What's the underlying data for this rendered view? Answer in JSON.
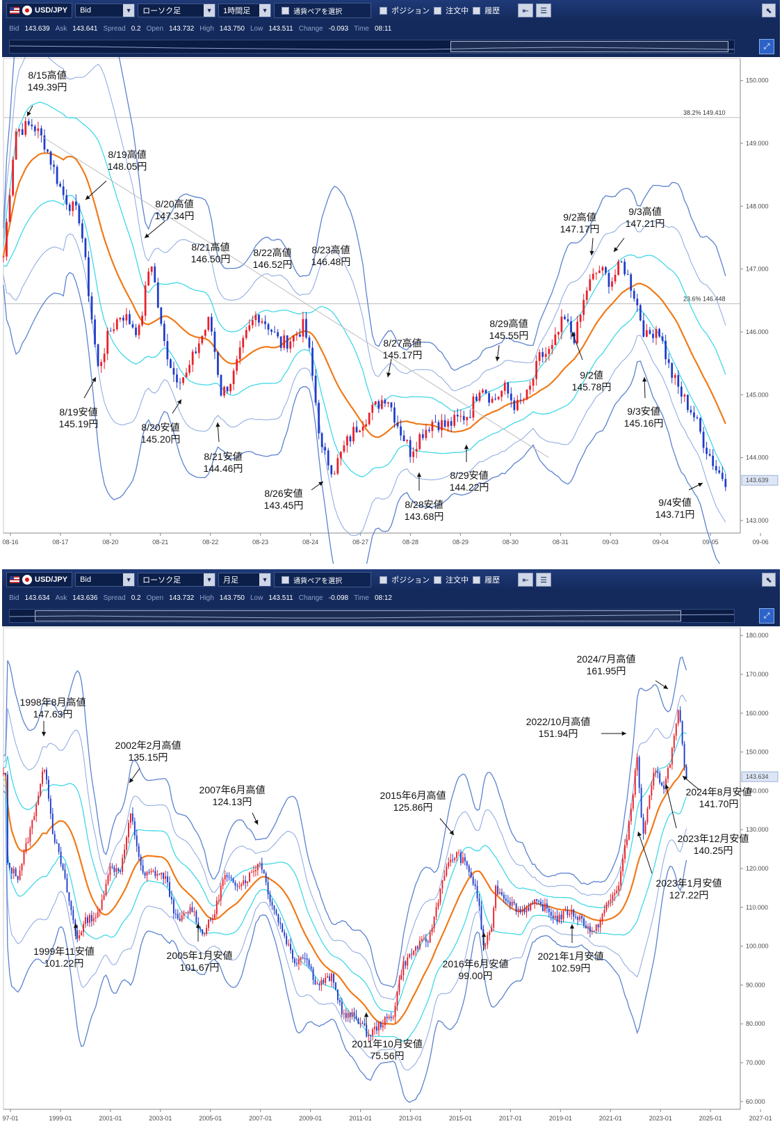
{
  "panels": [
    {
      "toolbar": {
        "pair": "USD/JPY",
        "price_type": "Bid",
        "chart_type": "ローソク足",
        "timeframe": "1時間足",
        "pair_select": "通貨ペアを選択",
        "position": "ポジション",
        "orders": "注文中",
        "history": "履歴"
      },
      "quote": {
        "bid_label": "Bid",
        "bid": "143.639",
        "ask_label": "Ask",
        "ask": "143.641",
        "spread_label": "Spread",
        "spread": "0.2",
        "open_label": "Open",
        "open": "143.732",
        "high_label": "High",
        "high": "143.750",
        "low_label": "Low",
        "low": "143.511",
        "change_label": "Change",
        "change": "-0.093",
        "time_label": "Time",
        "time": "08:11"
      },
      "chart_data": {
        "type": "candlestick",
        "indicators": [
          "SMA",
          "Bollinger Bands (±1σ, ±2σ, ±3σ)",
          "Trendline",
          "Fibonacci retracement"
        ],
        "y_ticks": [
          "150.000",
          "149.000",
          "148.000",
          "147.000",
          "146.000",
          "145.000",
          "144.000",
          "143.000"
        ],
        "x_ticks": [
          "08-16",
          "08-17",
          "08-20",
          "08-21",
          "08-22",
          "08-23",
          "08-24",
          "08-27",
          "08-28",
          "08-29",
          "08-30",
          "08-31",
          "09-03",
          "09-04",
          "09-05",
          "09-06"
        ],
        "ylim": [
          142.8,
          150.35
        ],
        "current_price": "143.639",
        "fib_levels": [
          {
            "label": "38.2%",
            "value": "149.410"
          },
          {
            "label": "23.6%",
            "value": "146.448"
          }
        ],
        "close_path": [
          [
            0,
            147.2
          ],
          [
            4,
            149.2
          ],
          [
            10,
            149.3
          ],
          [
            14,
            149.0
          ],
          [
            20,
            148.2
          ],
          [
            26,
            147.8
          ],
          [
            32,
            145.4
          ],
          [
            36,
            146.0
          ],
          [
            40,
            146.3
          ],
          [
            46,
            146.0
          ],
          [
            50,
            147.2
          ],
          [
            54,
            145.9
          ],
          [
            58,
            145.3
          ],
          [
            62,
            145.3
          ],
          [
            66,
            145.8
          ],
          [
            70,
            146.2
          ],
          [
            74,
            145.0
          ],
          [
            78,
            145.3
          ],
          [
            82,
            145.9
          ],
          [
            86,
            146.3
          ],
          [
            90,
            146.1
          ],
          [
            94,
            145.8
          ],
          [
            98,
            145.9
          ],
          [
            102,
            146.1
          ],
          [
            104,
            145.6
          ],
          [
            108,
            144.1
          ],
          [
            112,
            143.8
          ],
          [
            116,
            144.2
          ],
          [
            120,
            144.5
          ],
          [
            126,
            144.8
          ],
          [
            130,
            145.0
          ],
          [
            134,
            144.5
          ],
          [
            138,
            144.1
          ],
          [
            142,
            144.4
          ],
          [
            146,
            144.6
          ],
          [
            150,
            144.5
          ],
          [
            154,
            144.6
          ],
          [
            158,
            144.7
          ],
          [
            162,
            145.2
          ],
          [
            166,
            144.9
          ],
          [
            170,
            145.1
          ],
          [
            174,
            144.8
          ],
          [
            178,
            145.0
          ],
          [
            182,
            145.6
          ],
          [
            186,
            145.7
          ],
          [
            190,
            146.2
          ],
          [
            194,
            145.9
          ],
          [
            198,
            146.7
          ],
          [
            202,
            147.0
          ],
          [
            206,
            146.8
          ],
          [
            210,
            147.1
          ],
          [
            214,
            146.6
          ],
          [
            218,
            145.9
          ],
          [
            222,
            146.1
          ],
          [
            226,
            145.4
          ],
          [
            230,
            145.0
          ],
          [
            234,
            144.7
          ],
          [
            238,
            144.2
          ],
          [
            242,
            143.8
          ],
          [
            245,
            143.65
          ]
        ],
        "annotations": [
          {
            "label": "8/15高値",
            "value": "149.39円"
          },
          {
            "label": "8/19高値",
            "value": "148.05円"
          },
          {
            "label": "8/20高値",
            "value": "147.34円"
          },
          {
            "label": "8/21高値",
            "value": "146.50円"
          },
          {
            "label": "8/22高値",
            "value": "146.52円"
          },
          {
            "label": "8/23高値",
            "value": "146.48円"
          },
          {
            "label": "8/27高値",
            "value": "145.17円"
          },
          {
            "label": "8/29高値",
            "value": "145.55円"
          },
          {
            "label": "9/2高値",
            "value": "147.17円"
          },
          {
            "label": "9/3高値",
            "value": "147.21円"
          },
          {
            "label": "9/2値",
            "value": "145.78円"
          },
          {
            "label": "9/3安値",
            "value": "145.16円"
          },
          {
            "label": "8/19安値",
            "value": "145.19円"
          },
          {
            "label": "8/20安値",
            "value": "145.20円"
          },
          {
            "label": "8/21安値",
            "value": "144.46円"
          },
          {
            "label": "8/26安値",
            "value": "143.45円"
          },
          {
            "label": "8/28安値",
            "value": "143.68円"
          },
          {
            "label": "8/29安値",
            "value": "144.22円"
          },
          {
            "label": "9/4安値",
            "value": "143.71円"
          }
        ]
      }
    },
    {
      "toolbar": {
        "pair": "USD/JPY",
        "price_type": "Bid",
        "chart_type": "ローソク足",
        "timeframe": "月足",
        "pair_select": "通貨ペアを選択",
        "position": "ポジション",
        "orders": "注文中",
        "history": "履歴"
      },
      "quote": {
        "bid_label": "Bid",
        "bid": "143.634",
        "ask_label": "Ask",
        "ask": "143.636",
        "spread_label": "Spread",
        "spread": "0.2",
        "open_label": "Open",
        "open": "143.732",
        "high_label": "High",
        "high": "143.750",
        "low_label": "Low",
        "low": "143.511",
        "change_label": "Change",
        "change": "-0.098",
        "time_label": "Time",
        "time": "08:12"
      },
      "chart_data": {
        "type": "candlestick",
        "indicators": [
          "SMA",
          "Bollinger Bands (±1σ, ±2σ, ±3σ)"
        ],
        "y_ticks": [
          "180.000",
          "170.000",
          "160.000",
          "150.000",
          "140.000",
          "130.000",
          "120.000",
          "110.000",
          "100.000",
          "90.000",
          "80.000",
          "70.000",
          "60.000"
        ],
        "x_ticks": [
          "97-01",
          "1999-01",
          "2001-01",
          "2003-01",
          "2005-01",
          "2007-01",
          "2009-01",
          "2011-01",
          "2013-01",
          "2015-01",
          "2017-01",
          "2019-01",
          "2021-01",
          "2023-01",
          "2025-01",
          "2027-01"
        ],
        "ylim": [
          58,
          182
        ],
        "current_price": "143.634",
        "close_path": [
          [
            1997.0,
            121
          ],
          [
            1997.5,
            118
          ],
          [
            1998.0,
            130
          ],
          [
            1998.6,
            147
          ],
          [
            1998.9,
            130
          ],
          [
            1999.3,
            120
          ],
          [
            1999.9,
            102
          ],
          [
            2000.3,
            107
          ],
          [
            2000.8,
            108
          ],
          [
            2001.2,
            120
          ],
          [
            2001.7,
            120
          ],
          [
            2002.1,
            134
          ],
          [
            2002.6,
            118
          ],
          [
            2003.0,
            119
          ],
          [
            2003.5,
            118
          ],
          [
            2004.0,
            106
          ],
          [
            2004.6,
            110
          ],
          [
            2005.0,
            103
          ],
          [
            2005.5,
            108
          ],
          [
            2005.9,
            118
          ],
          [
            2006.3,
            116
          ],
          [
            2006.8,
            117
          ],
          [
            2007.4,
            122
          ],
          [
            2007.8,
            112
          ],
          [
            2008.3,
            104
          ],
          [
            2008.8,
            96
          ],
          [
            2009.2,
            98
          ],
          [
            2009.7,
            90
          ],
          [
            2010.3,
            92
          ],
          [
            2010.8,
            82
          ],
          [
            2011.3,
            82
          ],
          [
            2011.8,
            77
          ],
          [
            2012.3,
            80
          ],
          [
            2012.8,
            82
          ],
          [
            2013.2,
            95
          ],
          [
            2013.8,
            100
          ],
          [
            2014.3,
            102
          ],
          [
            2014.9,
            119
          ],
          [
            2015.4,
            124
          ],
          [
            2015.9,
            120
          ],
          [
            2016.3,
            112
          ],
          [
            2016.5,
            100
          ],
          [
            2016.8,
            103
          ],
          [
            2017.0,
            115
          ],
          [
            2017.5,
            112
          ],
          [
            2018.0,
            109
          ],
          [
            2018.6,
            111
          ],
          [
            2019.0,
            110
          ],
          [
            2019.5,
            107
          ],
          [
            2020.0,
            109
          ],
          [
            2020.5,
            107
          ],
          [
            2021.0,
            103
          ],
          [
            2021.5,
            110
          ],
          [
            2022.0,
            115
          ],
          [
            2022.4,
            129
          ],
          [
            2022.8,
            149
          ],
          [
            2023.0,
            128
          ],
          [
            2023.5,
            145
          ],
          [
            2023.9,
            141
          ],
          [
            2024.2,
            150
          ],
          [
            2024.5,
            161
          ],
          [
            2024.7,
            146
          ],
          [
            2024.8,
            144
          ]
        ],
        "annotations": [
          {
            "label": "1998年8月高値",
            "value": "147.63円"
          },
          {
            "label": "2002年2月高値",
            "value": "135.15円"
          },
          {
            "label": "2007年6月高値",
            "value": "124.13円"
          },
          {
            "label": "2015年6月高値",
            "value": "125.86円"
          },
          {
            "label": "2024/7月高値",
            "value": "161.95円"
          },
          {
            "label": "2022/10月高値",
            "value": "151.94円"
          },
          {
            "label": "2024年8月安値",
            "value": "141.70円"
          },
          {
            "label": "2023年12月安値",
            "value": "140.25円"
          },
          {
            "label": "2023年1月安値",
            "value": "127.22円"
          },
          {
            "label": "1999年11安値",
            "value": "101.22円"
          },
          {
            "label": "2005年1月安値",
            "value": "101.67円"
          },
          {
            "label": "2011年10月安値",
            "value": "75.56円"
          },
          {
            "label": "2016年6月安値",
            "value": "99.00円"
          },
          {
            "label": "2021年1月安値",
            "value": "102.59円"
          }
        ]
      }
    }
  ]
}
